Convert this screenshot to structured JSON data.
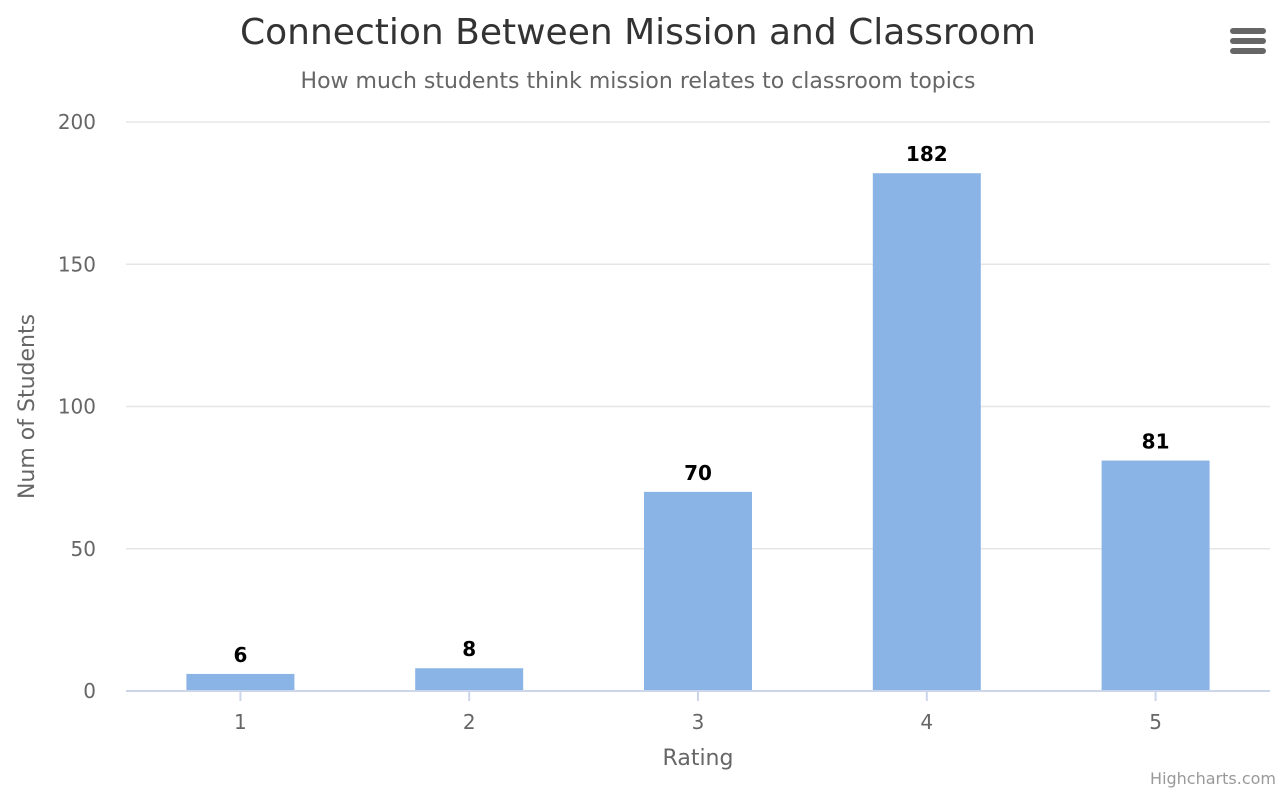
{
  "chart_data": {
    "type": "bar",
    "title": "Connection Between Mission and Classroom",
    "subtitle": "How much students think mission relates to classroom topics",
    "xlabel": "Rating",
    "ylabel": "Num of Students",
    "categories": [
      "1",
      "2",
      "3",
      "4",
      "5"
    ],
    "values": [
      6,
      8,
      70,
      182,
      81
    ],
    "ylim": [
      0,
      200
    ],
    "yticks": [
      0,
      50,
      100,
      150,
      200
    ],
    "grid": true,
    "bar_color": "#8bb4e6"
  },
  "menu": {
    "icon": "hamburger-menu-icon"
  },
  "credits": "Highcharts.com"
}
